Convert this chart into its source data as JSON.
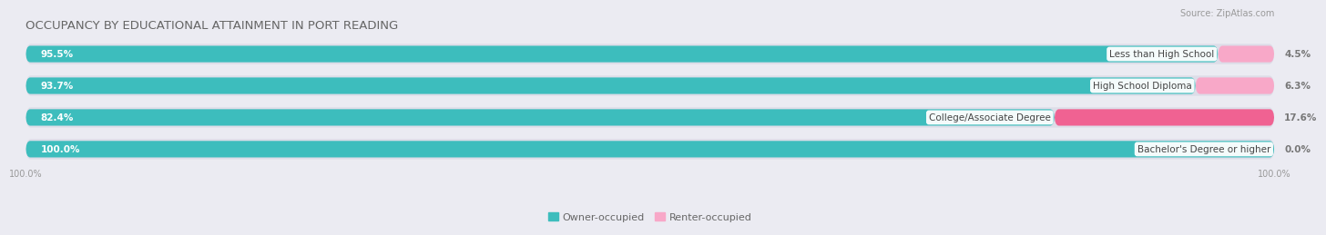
{
  "title": "OCCUPANCY BY EDUCATIONAL ATTAINMENT IN PORT READING",
  "source": "Source: ZipAtlas.com",
  "categories": [
    "Less than High School",
    "High School Diploma",
    "College/Associate Degree",
    "Bachelor's Degree or higher"
  ],
  "owner_pct": [
    95.5,
    93.7,
    82.4,
    100.0
  ],
  "renter_pct": [
    4.5,
    6.3,
    17.6,
    0.0
  ],
  "owner_color": "#3DBDBD",
  "renter_color_dark": "#F06292",
  "renter_color_light": "#F8A8C8",
  "bg_color": "#EBEBF2",
  "bar_bg_color": "#DDDDE8",
  "title_fontsize": 9.5,
  "bar_label_fontsize": 7.5,
  "cat_label_fontsize": 7.5,
  "tick_fontsize": 7,
  "source_fontsize": 7,
  "legend_fontsize": 8
}
